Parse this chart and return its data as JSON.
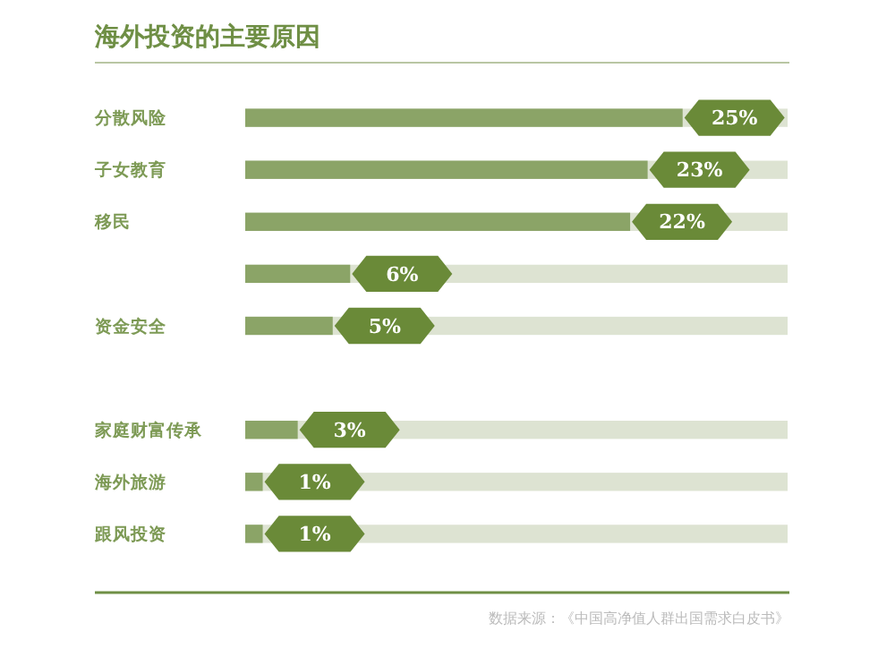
{
  "chart_data": {
    "type": "bar",
    "orientation": "horizontal",
    "title": "海外投资的主要原因",
    "categories": [
      "分散风险",
      "子女教育",
      "移民",
      null,
      "资金安全",
      null,
      "家庭财富传承",
      "海外旅游",
      "跟风投资"
    ],
    "values": [
      25,
      23,
      22,
      6,
      5,
      null,
      3,
      1,
      1
    ],
    "value_labels": [
      "25%",
      "23%",
      "22%",
      "6%",
      "5%",
      null,
      "3%",
      "1%",
      "1%"
    ],
    "color": "#8ba467",
    "xlim": [
      0,
      31
    ],
    "tick_labels": "y",
    "annotations": [
      "数据来源：《中国高净值人群出国需求白皮书》"
    ]
  }
}
